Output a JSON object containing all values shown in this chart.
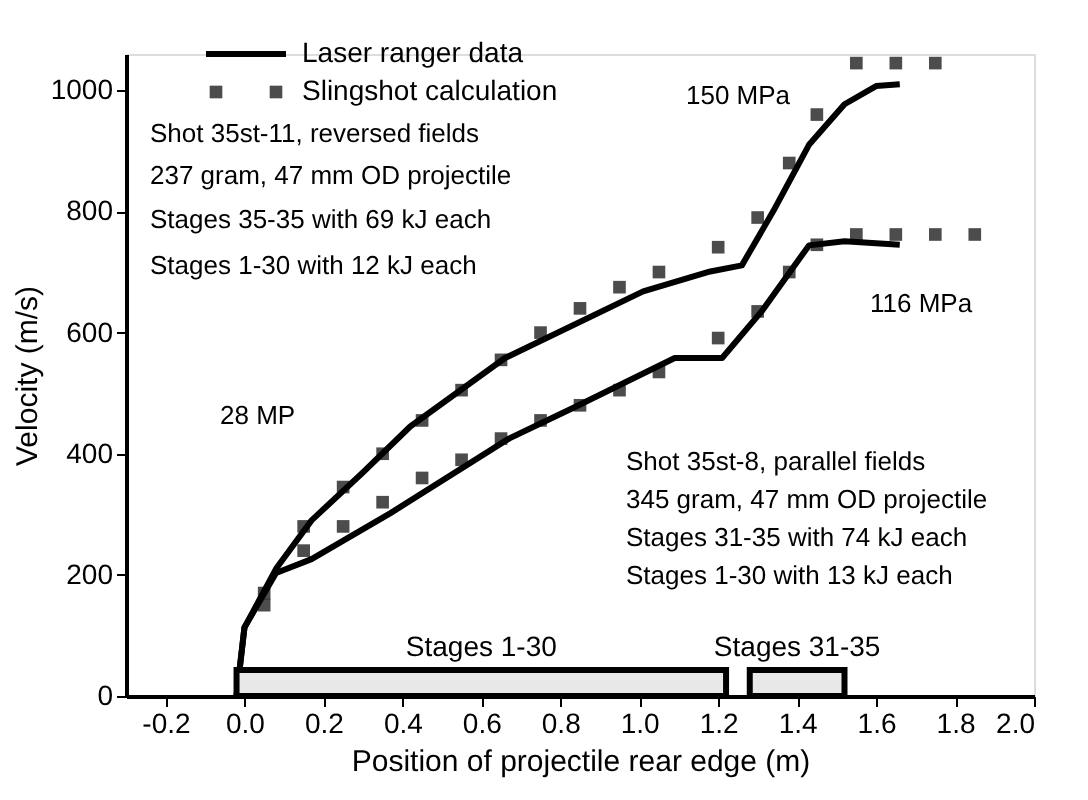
{
  "chart_data": {
    "type": "line",
    "xlabel": "Position of projectile rear edge (m)",
    "ylabel": "Velocity (m/s)",
    "xlim": [
      -0.3,
      2.0
    ],
    "ylim": [
      0,
      1060
    ],
    "xticks": [
      {
        "value": -0.2,
        "label": "-0.2"
      },
      {
        "value": 0,
        "label": "0.0"
      },
      {
        "value": 0.2,
        "label": "0.2"
      },
      {
        "value": 0.4,
        "label": "0.4"
      },
      {
        "value": 0.6,
        "label": "0.6"
      },
      {
        "value": 0.8,
        "label": "0.8"
      },
      {
        "value": 1,
        "label": "1.0"
      },
      {
        "value": 1.2,
        "label": "1.2"
      },
      {
        "value": 1.4,
        "label": "1.4"
      },
      {
        "value": 1.6,
        "label": "1.6"
      },
      {
        "value": 1.8,
        "label": "1.8"
      },
      {
        "value": 2,
        "label": "2.0"
      }
    ],
    "yticks": [
      0,
      200,
      400,
      600,
      800,
      1000
    ],
    "grid": false,
    "legend": "top left",
    "series": [
      {
        "name": "Laser ranger data",
        "color": "#000000",
        "line_style": "solid",
        "x": [
          -0.02,
          0.0,
          0.08,
          0.17,
          0.3,
          0.42,
          0.66,
          1.01,
          1.18,
          1.26,
          1.34,
          1.43,
          1.52,
          1.6,
          1.66
        ],
        "values": [
          0,
          113,
          210,
          290,
          369,
          445,
          558,
          668,
          701,
          711,
          801,
          910,
          977,
          1007,
          1010
        ]
      },
      {
        "color": "#000000",
        "line_style": "solid",
        "x": [
          -0.02,
          0.0,
          0.08,
          0.17,
          0.37,
          0.67,
          0.84,
          1.09,
          1.21,
          1.31,
          1.43,
          1.52,
          1.66
        ],
        "values": [
          0,
          113,
          203,
          226,
          302,
          425,
          478,
          558,
          558,
          635,
          744,
          751,
          745
        ]
      },
      {
        "name": "Slingshot calculation",
        "type": "scatter",
        "color": "#000000",
        "marker": "square",
        "x": [
          0.05,
          0.15,
          0.25,
          0.35,
          0.45,
          0.55,
          0.65,
          0.75,
          0.85,
          0.95,
          1.05,
          1.2,
          1.3,
          1.38,
          1.45,
          1.55,
          1.65,
          1.75
        ],
        "values": [
          170,
          280,
          345,
          400,
          455,
          505,
          555,
          600,
          640,
          675,
          700,
          741,
          790,
          880,
          960,
          1045,
          1045,
          1045
        ]
      },
      {
        "type": "scatter",
        "color": "#000000",
        "marker": "square",
        "x": [
          0.05,
          0.15,
          0.25,
          0.35,
          0.45,
          0.55,
          0.65,
          0.75,
          0.85,
          0.95,
          1.05,
          1.2,
          1.3,
          1.38,
          1.45,
          1.55,
          1.65,
          1.75,
          1.85
        ],
        "values": [
          150,
          240,
          280,
          320,
          360,
          390,
          425,
          455,
          480,
          505,
          535,
          591,
          635,
          700,
          745,
          762,
          762,
          762,
          762
        ]
      }
    ],
    "bands": [
      {
        "axis": "x",
        "from": -0.02,
        "to": 1.22,
        "label": "Stages 1-30"
      },
      {
        "axis": "x",
        "from": 1.28,
        "to": 1.52,
        "label": "Stages 31-35"
      }
    ],
    "annotations": [
      "150 MPa",
      "Shot 35st-11, reversed fields",
      "237 gram, 47 mm OD projectile",
      "Stages 35-35 with 69 kJ each",
      "Stages  1-30 with 12 kJ each",
      "116 MPa",
      "28 MP",
      "Shot 35st-8, parallel fields",
      "345 gram, 47 mm OD projectile",
      "Stages 31-35 with 74 kJ each",
      "Stages   1-30 with 13 kJ each"
    ]
  }
}
